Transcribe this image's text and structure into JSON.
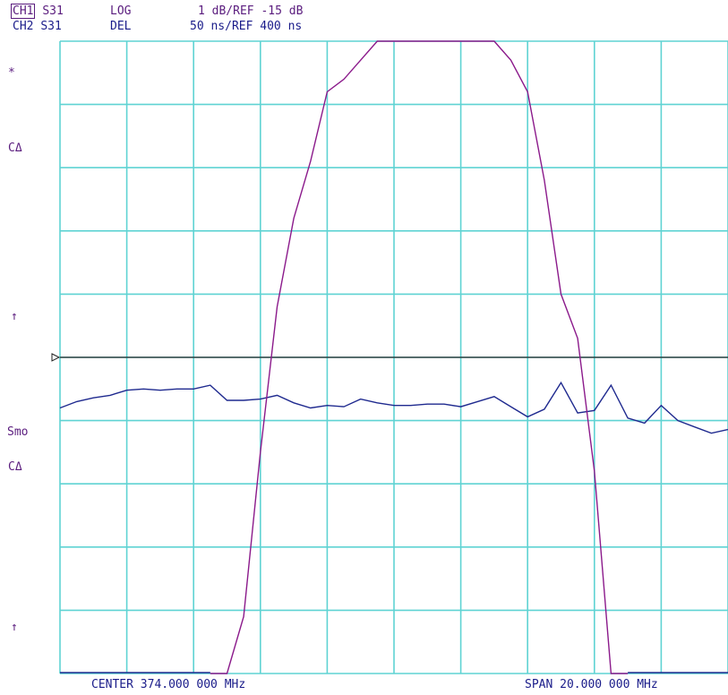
{
  "header": {
    "ch1": {
      "label": "CH1",
      "param": "S31",
      "format": "LOG",
      "scale": "1 dB/REF -15 dB"
    },
    "ch2": {
      "label": "CH2",
      "param": "S31",
      "format": "DEL",
      "scale": "50 ns/REF 400 ns"
    }
  },
  "annotations": {
    "marker_star": "*",
    "ch1_correction": "CΔ",
    "ch1_ref_arrow": "↑",
    "smoothing": "Smo",
    "ch2_correction": "CΔ",
    "ch2_ref_arrow": "↑"
  },
  "footer": {
    "center": "CENTER 374.000 000 MHz",
    "span": "SPAN  20.000 000 MHz"
  },
  "colors": {
    "grid": "#5fd3d3",
    "trace_log": "#8b1a8b",
    "trace_delay": "#1f2a8f",
    "reference_line": "#222222"
  },
  "chart_data": {
    "type": "line",
    "x": [
      364,
      364.5,
      365,
      365.5,
      366,
      366.5,
      367,
      367.5,
      368,
      368.5,
      369,
      369.5,
      370,
      370.5,
      371,
      371.5,
      372,
      372.5,
      373,
      373.5,
      374,
      374.5,
      375,
      375.5,
      376,
      376.5,
      377,
      377.5,
      378,
      378.5,
      379,
      379.5,
      380,
      380.5,
      381,
      381.5,
      382,
      382.5,
      383,
      383.5,
      384
    ],
    "series": [
      {
        "channel": "CH1",
        "format": "LOG",
        "ref_value": -15,
        "scale_per_div": 1,
        "values": [
          null,
          null,
          null,
          null,
          null,
          null,
          null,
          null,
          null,
          -23.8,
          -21.5,
          -19.1,
          -16.5,
          -14.2,
          -12.8,
          -11.9,
          -10.8,
          -10.6,
          -10.3,
          -9.9,
          -9.5,
          -9.3,
          -9.4,
          -9.2,
          -9.3,
          -9.6,
          -9.9,
          -10.3,
          -10.8,
          -12.2,
          -14.0,
          -14.7,
          -16.8,
          -20.8,
          -23.8,
          null,
          null,
          null,
          null,
          null,
          null
        ]
      },
      {
        "channel": "CH2",
        "format": "DEL",
        "ref_value": 400,
        "scale_per_div": 50,
        "values": [
          360,
          365,
          368,
          370,
          374,
          375,
          374,
          375,
          375,
          378,
          366,
          366,
          367,
          370,
          364,
          360,
          362,
          361,
          367,
          364,
          362,
          362,
          363,
          363,
          361,
          365,
          369,
          361,
          353,
          359,
          380,
          356,
          358,
          378,
          352,
          348,
          362,
          350,
          345,
          340,
          343
        ]
      }
    ],
    "xlabel": "",
    "ylabel": "",
    "xlim": [
      364,
      384
    ],
    "divisions_x": 10,
    "divisions_y": 10,
    "grid": true,
    "reference_line_y_division": 5
  }
}
